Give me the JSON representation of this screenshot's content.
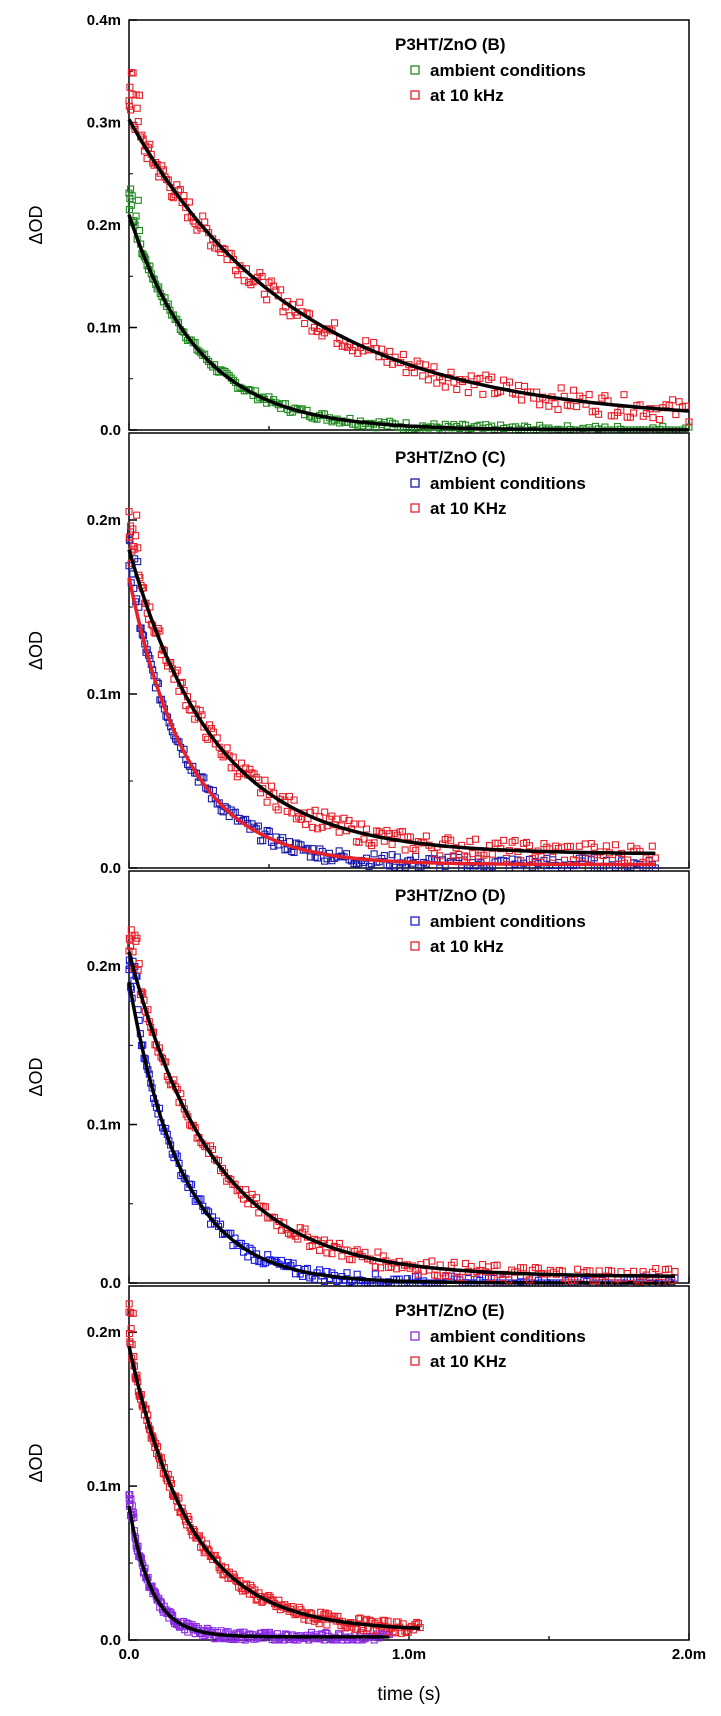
{
  "xlabel": "time (s)",
  "x_ticks": [
    "0.0",
    "1.0m",
    "2.0m"
  ],
  "chart_data": [
    {
      "type": "scatter",
      "title": "P3HT/ZnO  (B)",
      "xlabel": "time (s)",
      "ylabel": "ΔOD",
      "xlim": [
        0,
        0.002
      ],
      "ylim": [
        0,
        0.0004
      ],
      "y_ticks": [
        {
          "v": 0,
          "label": "0.0"
        },
        {
          "v": 0.0001,
          "label": "0.1m"
        },
        {
          "v": 0.0002,
          "label": "0.2m"
        },
        {
          "v": 0.0003,
          "label": "0.3m"
        },
        {
          "v": 0.0004,
          "label": "0.4m"
        }
      ],
      "legend_position": "top-right",
      "series": [
        {
          "name": "ambient conditions",
          "color": "#1f8a1f",
          "x_end": 0.002,
          "a": 0.00021,
          "tau": 0.00025,
          "c": 0,
          "noise": 4e-06,
          "fit_color": "#000000"
        },
        {
          "name": " at 10 kHz",
          "color": "#e8202a",
          "x_end": 0.002,
          "a": 0.000295,
          "tau": 0.0006,
          "c": 8e-06,
          "noise": 1.1e-05,
          "fit_color": "#000000"
        }
      ]
    },
    {
      "type": "scatter",
      "title": "P3HT/ZnO  (C)",
      "xlabel": "time (s)",
      "ylabel": "ΔOD",
      "xlim": [
        0,
        0.002
      ],
      "ylim": [
        0,
        0.00025
      ],
      "y_ticks": [
        {
          "v": 0,
          "label": "0.0"
        },
        {
          "v": 0.0001,
          "label": "0.1m"
        },
        {
          "v": 0.0002,
          "label": "0.2m"
        }
      ],
      "legend_position": "top-right",
      "series": [
        {
          "name": "ambient conditions",
          "color": "#1a1aa8",
          "x_end": 0.00188,
          "a": 0.000165,
          "tau": 0.00021,
          "c": 2e-06,
          "noise": 4e-06,
          "fit_color": "#e8202a"
        },
        {
          "name": "at 10 KHz",
          "color": "#e8202a",
          "x_end": 0.00188,
          "a": 0.000175,
          "tau": 0.00031,
          "c": 8e-06,
          "noise": 6e-06,
          "fit_color": "#000000"
        }
      ]
    },
    {
      "type": "scatter",
      "title": "P3HT/ZnO  (D)",
      "xlabel": "time (s)",
      "ylabel": "ΔOD",
      "xlim": [
        0,
        0.002
      ],
      "ylim": [
        0,
        0.00026
      ],
      "y_ticks": [
        {
          "v": 0,
          "label": "0.0"
        },
        {
          "v": 0.0001,
          "label": "0.1m"
        },
        {
          "v": 0.0002,
          "label": "0.2m"
        }
      ],
      "legend_position": "top-right",
      "series": [
        {
          "name": "ambient conditions",
          "color": "#1a1ae0",
          "x_end": 0.00195,
          "a": 0.00019,
          "tau": 0.00019,
          "c": 0,
          "noise": 4e-06,
          "fit_color": "#000000"
        },
        {
          "name": " at 10 kHz",
          "color": "#e8202a",
          "x_end": 0.00195,
          "a": 0.000205,
          "tau": 0.0003,
          "c": 4e-06,
          "noise": 5e-06,
          "fit_color": "#000000"
        }
      ]
    },
    {
      "type": "scatter",
      "title": "P3HT/ZnO  (E)",
      "xlabel": "time (s)",
      "ylabel": "ΔOD",
      "xlim": [
        0,
        0.002
      ],
      "ylim": [
        0,
        0.00023
      ],
      "y_ticks": [
        {
          "v": 0,
          "label": "0.0"
        },
        {
          "v": 0.0001,
          "label": "0.1m"
        },
        {
          "v": 0.0002,
          "label": "0.2m"
        }
      ],
      "legend_position": "top-right",
      "series": [
        {
          "name": " ambient conditions",
          "color": "#8a2be2",
          "x_end": 0.00093,
          "a": 8.5e-05,
          "tau": 8e-05,
          "c": 2e-06,
          "noise": 3e-06,
          "fit_color": "#000000"
        },
        {
          "name": " at 10 KHz",
          "color": "#e8202a",
          "x_end": 0.00104,
          "a": 0.000185,
          "tau": 0.00022,
          "c": 6e-06,
          "noise": 4e-06,
          "fit_color": "#000000"
        }
      ]
    }
  ]
}
